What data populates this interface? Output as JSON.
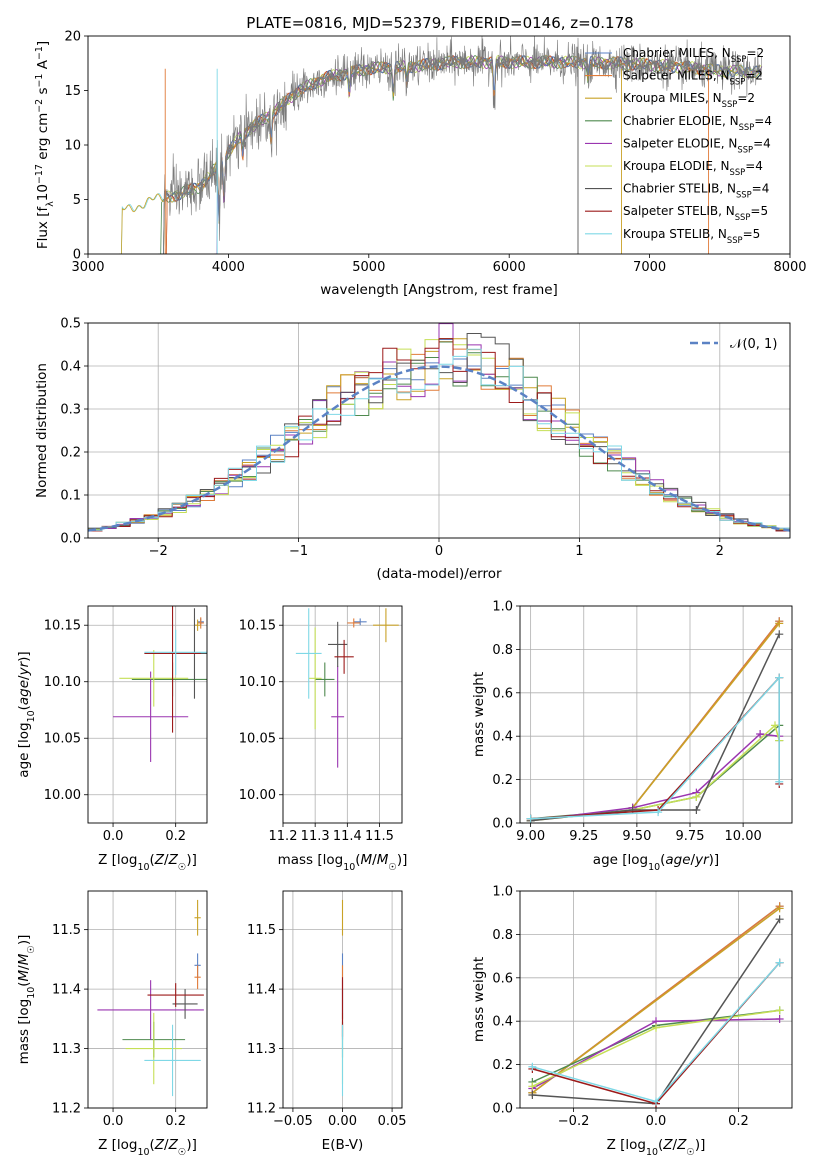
{
  "title": "PLATE=0816, MJD=52379, FIBERID=0146, z=0.178",
  "colors": [
    "#5b82c4",
    "#e07b39",
    "#c9a227",
    "#4f8a4f",
    "#9a35b0",
    "#c5df56",
    "#555555",
    "#9c1a1a",
    "#7fd8e6"
  ],
  "chart_data": [
    {
      "type": "line",
      "panel": "spectrum",
      "xlabel": "wavelength [Angstrom, rest frame]",
      "ylabel": "Flux [f_λ 10^-17 erg cm^-2 s^-1 A^-1]",
      "xlim": [
        3000,
        8000
      ],
      "ylim": [
        0,
        20
      ],
      "xticks": [
        "3000",
        "4000",
        "5000",
        "6000",
        "7000",
        "8000"
      ],
      "yticks": [
        "0",
        "5",
        "10",
        "15",
        "20"
      ],
      "grid": false,
      "legend_position": "top-right",
      "legend": [
        {
          "imf": "Chabrier",
          "lib": "MILES",
          "nssp": "2"
        },
        {
          "imf": "Salpeter",
          "lib": "MILES",
          "nssp": "2"
        },
        {
          "imf": "Kroupa",
          "lib": "MILES",
          "nssp": "2"
        },
        {
          "imf": "Chabrier",
          "lib": "ELODIE",
          "nssp": "4"
        },
        {
          "imf": "Salpeter",
          "lib": "ELODIE",
          "nssp": "4"
        },
        {
          "imf": "Kroupa",
          "lib": "ELODIE",
          "nssp": "4"
        },
        {
          "imf": "Chabrier",
          "lib": "STELIB",
          "nssp": "4"
        },
        {
          "imf": "Salpeter",
          "lib": "STELIB",
          "nssp": "5"
        },
        {
          "imf": "Kroupa",
          "lib": "STELIB",
          "nssp": "5"
        }
      ],
      "continuum": {
        "x": [
          3220,
          3350,
          3500,
          3650,
          3800,
          3950,
          4100,
          4300,
          4500,
          4700,
          5000,
          5300,
          5600,
          6000,
          6400,
          6800,
          7200,
          7500,
          7800
        ],
        "y": [
          3.8,
          4.5,
          5.0,
          5.5,
          6.2,
          8.5,
          11.0,
          12.8,
          15.0,
          16.2,
          17.0,
          17.2,
          17.6,
          17.6,
          17.6,
          17.5,
          17.2,
          16.8,
          16.7
        ]
      }
    },
    {
      "type": "histogram",
      "panel": "residuals",
      "xlabel": "(data-model)/error",
      "ylabel": "Normed distribution",
      "xlim": [
        -2.5,
        2.5
      ],
      "ylim": [
        0,
        0.5
      ],
      "xticks": [
        "−2",
        "−1",
        "0",
        "1",
        "2"
      ],
      "yticks": [
        "0.0",
        "0.1",
        "0.2",
        "0.3",
        "0.4",
        "0.5"
      ],
      "grid": true,
      "legend_position": "top-right",
      "reference_curve": "N(0,1)",
      "legend_label": "𝒩(0, 1)"
    },
    {
      "type": "scatter",
      "panel": "age_vs_Z",
      "xlabel": "Z [log10(Z/Z☉)]",
      "ylabel": "age  [log10(age/yr)]",
      "xlim": [
        -0.08,
        0.3
      ],
      "ylim": [
        9.975,
        10.167
      ],
      "xticks": [
        "0.0",
        "0.2"
      ],
      "yticks": [
        "10.00",
        "10.05",
        "10.10",
        "10.15"
      ],
      "grid": true,
      "points": [
        {
          "x": 0.28,
          "y": 10.153,
          "xerr": 0.01,
          "yerr": 0.003
        },
        {
          "x": 0.28,
          "y": 10.152,
          "xerr": 0.01,
          "yerr": 0.005
        },
        {
          "x": 0.27,
          "y": 10.15,
          "xerr": 0.01,
          "yerr": 0.005
        },
        {
          "x": 0.19,
          "y": 10.102,
          "xerr": 0.13,
          "yerr": 0.015
        },
        {
          "x": 0.12,
          "y": 10.069,
          "xerr": 0.12,
          "yerr": 0.04
        },
        {
          "x": 0.13,
          "y": 10.103,
          "xerr": 0.11,
          "yerr": 0.025
        },
        {
          "x": 0.26,
          "y": 10.125,
          "xerr": 0.08,
          "yerr": 0.04
        },
        {
          "x": 0.19,
          "y": 10.125,
          "xerr": 0.09,
          "yerr": 0.07
        },
        {
          "x": 0.2,
          "y": 10.126,
          "xerr": 0.1,
          "yerr": 0.02
        }
      ]
    },
    {
      "type": "scatter",
      "panel": "age_vs_mass",
      "xlabel": "mass [log10(M/M☉)]",
      "ylabel": "",
      "xlim": [
        11.2,
        11.57
      ],
      "ylim": [
        9.975,
        10.167
      ],
      "xticks": [
        "11.2",
        "11.3",
        "11.4",
        "11.5"
      ],
      "yticks": [
        "10.00",
        "10.05",
        "10.10",
        "10.15"
      ],
      "grid": true,
      "points": [
        {
          "x": 11.44,
          "y": 10.153,
          "xerr": 0.02,
          "yerr": 0.003
        },
        {
          "x": 11.42,
          "y": 10.152,
          "xerr": 0.02,
          "yerr": 0.004
        },
        {
          "x": 11.52,
          "y": 10.15,
          "xerr": 0.04,
          "yerr": 0.015
        },
        {
          "x": 11.33,
          "y": 10.102,
          "xerr": 0.03,
          "yerr": 0.015
        },
        {
          "x": 11.37,
          "y": 10.069,
          "xerr": 0.02,
          "yerr": 0.045
        },
        {
          "x": 11.3,
          "y": 10.103,
          "xerr": 0.02,
          "yerr": 0.045
        },
        {
          "x": 11.37,
          "y": 10.133,
          "xerr": 0.03,
          "yerr": 0.02
        },
        {
          "x": 11.39,
          "y": 10.122,
          "xerr": 0.03,
          "yerr": 0.015
        },
        {
          "x": 11.28,
          "y": 10.125,
          "xerr": 0.04,
          "yerr": 0.04
        }
      ]
    },
    {
      "type": "line",
      "panel": "weight_vs_age",
      "xlabel": "age  [log10(age/yr)]",
      "ylabel": "mass weight",
      "xlim": [
        8.95,
        10.23
      ],
      "ylim": [
        0,
        1
      ],
      "xticks": [
        "9.00",
        "9.25",
        "9.50",
        "9.75",
        "10.00"
      ],
      "yticks": [
        "0.0",
        "0.2",
        "0.4",
        "0.6",
        "0.8",
        "1.0"
      ],
      "grid": true,
      "series": [
        {
          "x": [
            9.48,
            10.17
          ],
          "y": [
            0.07,
            0.93
          ]
        },
        {
          "x": [
            9.48,
            10.17
          ],
          "y": [
            0.07,
            0.93
          ]
        },
        {
          "x": [
            9.48,
            10.17
          ],
          "y": [
            0.07,
            0.92
          ]
        },
        {
          "x": [
            9.0,
            9.48,
            9.78,
            10.17,
            10.17
          ],
          "y": [
            0.02,
            0.06,
            0.12,
            0.45,
            0.38
          ]
        },
        {
          "x": [
            9.0,
            9.48,
            9.78,
            10.08,
            10.17
          ],
          "y": [
            0.01,
            0.07,
            0.14,
            0.41,
            0.4
          ]
        },
        {
          "x": [
            9.0,
            9.48,
            9.78,
            10.15,
            10.17
          ],
          "y": [
            0.01,
            0.06,
            0.12,
            0.45,
            0.38
          ]
        },
        {
          "x": [
            9.0,
            9.48,
            9.78,
            10.17
          ],
          "y": [
            0.01,
            0.06,
            0.06,
            0.87
          ]
        },
        {
          "x": [
            9.0,
            9.6,
            10.17,
            10.17
          ],
          "y": [
            0.02,
            0.06,
            0.67,
            0.18
          ]
        },
        {
          "x": [
            9.0,
            9.6,
            10.17,
            10.17
          ],
          "y": [
            0.02,
            0.05,
            0.67,
            0.19
          ]
        }
      ]
    },
    {
      "type": "scatter",
      "panel": "mass_vs_Z",
      "xlabel": "Z [log10(Z/Z☉)]",
      "ylabel": "mass [log10(M/M☉)]",
      "xlim": [
        -0.08,
        0.3
      ],
      "ylim": [
        11.2,
        11.565
      ],
      "xticks": [
        "0.0",
        "0.2"
      ],
      "yticks": [
        "11.2",
        "11.3",
        "11.4",
        "11.5"
      ],
      "grid": true,
      "points": [
        {
          "x": 0.27,
          "y": 11.44,
          "xerr": 0.01,
          "yerr": 0.02
        },
        {
          "x": 0.27,
          "y": 11.42,
          "xerr": 0.01,
          "yerr": 0.02
        },
        {
          "x": 0.27,
          "y": 11.52,
          "xerr": 0.01,
          "yerr": 0.03
        },
        {
          "x": 0.13,
          "y": 11.315,
          "xerr": 0.1,
          "yerr": 0.03
        },
        {
          "x": 0.12,
          "y": 11.365,
          "xerr": 0.17,
          "yerr": 0.05
        },
        {
          "x": 0.13,
          "y": 11.3,
          "xerr": 0.09,
          "yerr": 0.06
        },
        {
          "x": 0.23,
          "y": 11.375,
          "xerr": 0.04,
          "yerr": 0.025
        },
        {
          "x": 0.2,
          "y": 11.39,
          "xerr": 0.09,
          "yerr": 0.02
        },
        {
          "x": 0.19,
          "y": 11.28,
          "xerr": 0.09,
          "yerr": 0.06
        }
      ]
    },
    {
      "type": "scatter",
      "panel": "mass_vs_ebv",
      "xlabel": "E(B-V)",
      "ylabel": "",
      "xlim": [
        -0.06,
        0.06
      ],
      "ylim": [
        11.2,
        11.565
      ],
      "xticks": [
        "−0.05",
        "0.00",
        "0.05"
      ],
      "yticks": [
        "11.2",
        "11.3",
        "11.4",
        "11.5"
      ],
      "grid": true,
      "points": [
        {
          "x": 0,
          "y": 11.44,
          "xerr": 0,
          "yerr": 0.02
        },
        {
          "x": 0,
          "y": 11.42,
          "xerr": 0,
          "yerr": 0.02
        },
        {
          "x": 0,
          "y": 11.52,
          "xerr": 0,
          "yerr": 0.03
        },
        {
          "x": 0,
          "y": 11.315,
          "xerr": 0,
          "yerr": 0.03
        },
        {
          "x": 0,
          "y": 11.365,
          "xerr": 0,
          "yerr": 0.05
        },
        {
          "x": 0,
          "y": 11.3,
          "xerr": 0,
          "yerr": 0.06
        },
        {
          "x": 0,
          "y": 11.375,
          "xerr": 0,
          "yerr": 0.025
        },
        {
          "x": 0,
          "y": 11.37,
          "xerr": 0,
          "yerr": 0.05
        },
        {
          "x": 0,
          "y": 11.28,
          "xerr": 0,
          "yerr": 0.06
        }
      ]
    },
    {
      "type": "line",
      "panel": "weight_vs_Z",
      "xlabel": "Z [log10(Z/Z☉)]",
      "ylabel": "mass weight",
      "xlim": [
        -0.33,
        0.33
      ],
      "ylim": [
        0,
        1
      ],
      "xticks": [
        "−0.2",
        "0.0",
        "0.2"
      ],
      "yticks": [
        "0.0",
        "0.2",
        "0.4",
        "0.6",
        "0.8",
        "1.0"
      ],
      "grid": true,
      "series": [
        {
          "x": [
            -0.3,
            0.3
          ],
          "y": [
            0.07,
            0.93
          ]
        },
        {
          "x": [
            -0.3,
            0.3
          ],
          "y": [
            0.07,
            0.93
          ]
        },
        {
          "x": [
            -0.3,
            0.3
          ],
          "y": [
            0.07,
            0.92
          ]
        },
        {
          "x": [
            -0.3,
            0.0,
            0.3
          ],
          "y": [
            0.12,
            0.38,
            0.45
          ]
        },
        {
          "x": [
            -0.3,
            0.0,
            0.3
          ],
          "y": [
            0.09,
            0.4,
            0.41
          ]
        },
        {
          "x": [
            -0.3,
            0.0,
            0.3
          ],
          "y": [
            0.1,
            0.37,
            0.45
          ]
        },
        {
          "x": [
            -0.3,
            0.0,
            0.3
          ],
          "y": [
            0.06,
            0.02,
            0.87
          ]
        },
        {
          "x": [
            -0.3,
            0.0,
            0.3
          ],
          "y": [
            0.18,
            0.02,
            0.67
          ]
        },
        {
          "x": [
            -0.3,
            0.0,
            0.3
          ],
          "y": [
            0.19,
            0.03,
            0.67
          ]
        }
      ]
    }
  ]
}
